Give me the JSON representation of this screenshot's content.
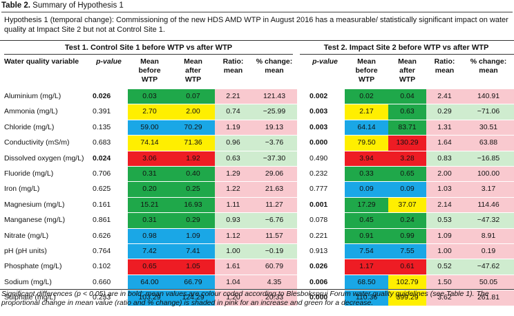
{
  "caption": {
    "label": "Table 2.",
    "title": "Summary of Hypothesis 1"
  },
  "hypothesis": "Hypothesis 1 (temporal change): Commissioning of the new HDS AMD WTP in August 2016 has a measurable/ statistically significant impact on water quality at Impact Site 2 but not at Control Site 1.",
  "test1_title": "Test 1. Control Site 1 before WTP vs after WTP",
  "test2_title": "Test 2. Impact Site 2 before WTP vs after WTP",
  "headers": {
    "variable": "Water quality variable",
    "pvalue": "p-value",
    "mean_before": "Mean before WTP",
    "mean_after": "Mean after WTP",
    "ratio": "Ratio: mean",
    "pct": "% change: mean"
  },
  "colors": {
    "green": "#1fa84a",
    "yellow": "#ffef00",
    "blue": "#1aa7e6",
    "red": "#ee1c24",
    "increase": "#f9c9cf",
    "decrease": "#cfeccf"
  },
  "rows": [
    {
      "var": "Aluminium (mg/L)",
      "t1": {
        "p": "0.026",
        "sig": true,
        "before": "0.03",
        "bc": "green",
        "after": "0.07",
        "ac": "green",
        "ratio": "2.21",
        "pct": "121.43",
        "dir": "increase"
      },
      "t2": {
        "p": "0.002",
        "sig": true,
        "before": "0.02",
        "bc": "green",
        "after": "0.04",
        "ac": "green",
        "ratio": "2.41",
        "pct": "140.91",
        "dir": "increase"
      }
    },
    {
      "var": "Ammonia (mg/L)",
      "t1": {
        "p": "0.391",
        "sig": false,
        "before": "2.70",
        "bc": "yellow",
        "after": "2.00",
        "ac": "yellow",
        "ratio": "0.74",
        "pct": "−25.99",
        "dir": "decrease"
      },
      "t2": {
        "p": "0.003",
        "sig": true,
        "before": "2.17",
        "bc": "yellow",
        "after": "0.63",
        "ac": "green",
        "ratio": "0.29",
        "pct": "−71.06",
        "dir": "decrease"
      }
    },
    {
      "var": "Chloride (mg/L)",
      "t1": {
        "p": "0.135",
        "sig": false,
        "before": "59.00",
        "bc": "blue",
        "after": "70.29",
        "ac": "blue",
        "ratio": "1.19",
        "pct": "19.13",
        "dir": "increase"
      },
      "t2": {
        "p": "0.003",
        "sig": true,
        "before": "64.14",
        "bc": "blue",
        "after": "83.71",
        "ac": "green",
        "ratio": "1.31",
        "pct": "30.51",
        "dir": "increase"
      }
    },
    {
      "var": "Conductivity (mS/m)",
      "t1": {
        "p": "0.683",
        "sig": false,
        "before": "74.14",
        "bc": "yellow",
        "after": "71.36",
        "ac": "yellow",
        "ratio": "0.96",
        "pct": "−3.76",
        "dir": "decrease"
      },
      "t2": {
        "p": "0.000",
        "sig": true,
        "before": "79.50",
        "bc": "yellow",
        "after": "130.29",
        "ac": "red",
        "ratio": "1.64",
        "pct": "63.88",
        "dir": "increase"
      }
    },
    {
      "var": "Dissolved oxygen (mg/L)",
      "t1": {
        "p": "0.024",
        "sig": true,
        "before": "3.06",
        "bc": "red",
        "after": "1.92",
        "ac": "red",
        "ratio": "0.63",
        "pct": "−37.30",
        "dir": "decrease"
      },
      "t2": {
        "p": "0.490",
        "sig": false,
        "before": "3.94",
        "bc": "red",
        "after": "3.28",
        "ac": "red",
        "ratio": "0.83",
        "pct": "−16.85",
        "dir": "decrease"
      }
    },
    {
      "var": "Fluoride (mg/L)",
      "t1": {
        "p": "0.706",
        "sig": false,
        "before": "0.31",
        "bc": "green",
        "after": "0.40",
        "ac": "green",
        "ratio": "1.29",
        "pct": "29.06",
        "dir": "increase"
      },
      "t2": {
        "p": "0.232",
        "sig": false,
        "before": "0.33",
        "bc": "green",
        "after": "0.65",
        "ac": "green",
        "ratio": "2.00",
        "pct": "100.00",
        "dir": "increase"
      }
    },
    {
      "var": "Iron (mg/L)",
      "t1": {
        "p": "0.625",
        "sig": false,
        "before": "0.20",
        "bc": "green",
        "after": "0.25",
        "ac": "green",
        "ratio": "1.22",
        "pct": "21.63",
        "dir": "increase"
      },
      "t2": {
        "p": "0.777",
        "sig": false,
        "before": "0.09",
        "bc": "blue",
        "after": "0.09",
        "ac": "blue",
        "ratio": "1.03",
        "pct": "3.17",
        "dir": "increase"
      }
    },
    {
      "var": "Magnesium (mg/L)",
      "t1": {
        "p": "0.161",
        "sig": false,
        "before": "15.21",
        "bc": "green",
        "after": "16.93",
        "ac": "green",
        "ratio": "1.11",
        "pct": "11.27",
        "dir": "increase"
      },
      "t2": {
        "p": "0.001",
        "sig": true,
        "before": "17.29",
        "bc": "green",
        "after": "37.07",
        "ac": "yellow",
        "ratio": "2.14",
        "pct": "114.46",
        "dir": "increase"
      }
    },
    {
      "var": "Manganese (mg/L)",
      "t1": {
        "p": "0.861",
        "sig": false,
        "before": "0.31",
        "bc": "green",
        "after": "0.29",
        "ac": "green",
        "ratio": "0.93",
        "pct": "−6.76",
        "dir": "decrease"
      },
      "t2": {
        "p": "0.078",
        "sig": false,
        "before": "0.45",
        "bc": "green",
        "after": "0.24",
        "ac": "green",
        "ratio": "0.53",
        "pct": "−47.32",
        "dir": "decrease"
      }
    },
    {
      "var": "Nitrate (mg/L)",
      "t1": {
        "p": "0.626",
        "sig": false,
        "before": "0.98",
        "bc": "blue",
        "after": "1.09",
        "ac": "blue",
        "ratio": "1.12",
        "pct": "11.57",
        "dir": "increase"
      },
      "t2": {
        "p": "0.221",
        "sig": false,
        "before": "0.91",
        "bc": "green",
        "after": "0.99",
        "ac": "green",
        "ratio": "1.09",
        "pct": "8.91",
        "dir": "increase"
      }
    },
    {
      "var": "pH (pH units)",
      "t1": {
        "p": "0.764",
        "sig": false,
        "before": "7.42",
        "bc": "blue",
        "after": "7.41",
        "ac": "blue",
        "ratio": "1.00",
        "pct": "−0.19",
        "dir": "decrease"
      },
      "t2": {
        "p": "0.913",
        "sig": false,
        "before": "7.54",
        "bc": "blue",
        "after": "7.55",
        "ac": "blue",
        "ratio": "1.00",
        "pct": "0.19",
        "dir": "increase"
      }
    },
    {
      "var": "Phosphate (mg/L)",
      "t1": {
        "p": "0.102",
        "sig": false,
        "before": "0.65",
        "bc": "red",
        "after": "1.05",
        "ac": "red",
        "ratio": "1.61",
        "pct": "60.79",
        "dir": "increase"
      },
      "t2": {
        "p": "0.026",
        "sig": true,
        "before": "1.17",
        "bc": "red",
        "after": "0.61",
        "ac": "red",
        "ratio": "0.52",
        "pct": "−47.62",
        "dir": "decrease"
      }
    },
    {
      "var": "Sodium (mg/L)",
      "t1": {
        "p": "0.660",
        "sig": false,
        "before": "64.00",
        "bc": "blue",
        "after": "66.79",
        "ac": "blue",
        "ratio": "1.04",
        "pct": "4.35",
        "dir": "increase"
      },
      "t2": {
        "p": "0.006",
        "sig": true,
        "before": "68.50",
        "bc": "blue",
        "after": "102.79",
        "ac": "yellow",
        "ratio": "1.50",
        "pct": "50.05",
        "dir": "increase"
      }
    },
    {
      "var": "Sulphate (mg/L)",
      "t1": {
        "p": "0.233",
        "sig": false,
        "before": "103.29",
        "bc": "blue",
        "after": "124.29",
        "ac": "blue",
        "ratio": "1.20",
        "pct": "20.33",
        "dir": "increase"
      },
      "t2": {
        "p": "0.000",
        "sig": true,
        "before": "110.36",
        "bc": "blue",
        "after": "399.29",
        "ac": "yellow",
        "ratio": "3.62",
        "pct": "261.81",
        "dir": "increase"
      }
    }
  ],
  "footnote": "Significant differences (p < 0.05) are in bold; mean values are colour coded according to Blesboksprui Forum water quality guidelines (see Table 1). The proportional change in mean value (ratio and % change) is shaded in pink for an increase and green for a decrease."
}
